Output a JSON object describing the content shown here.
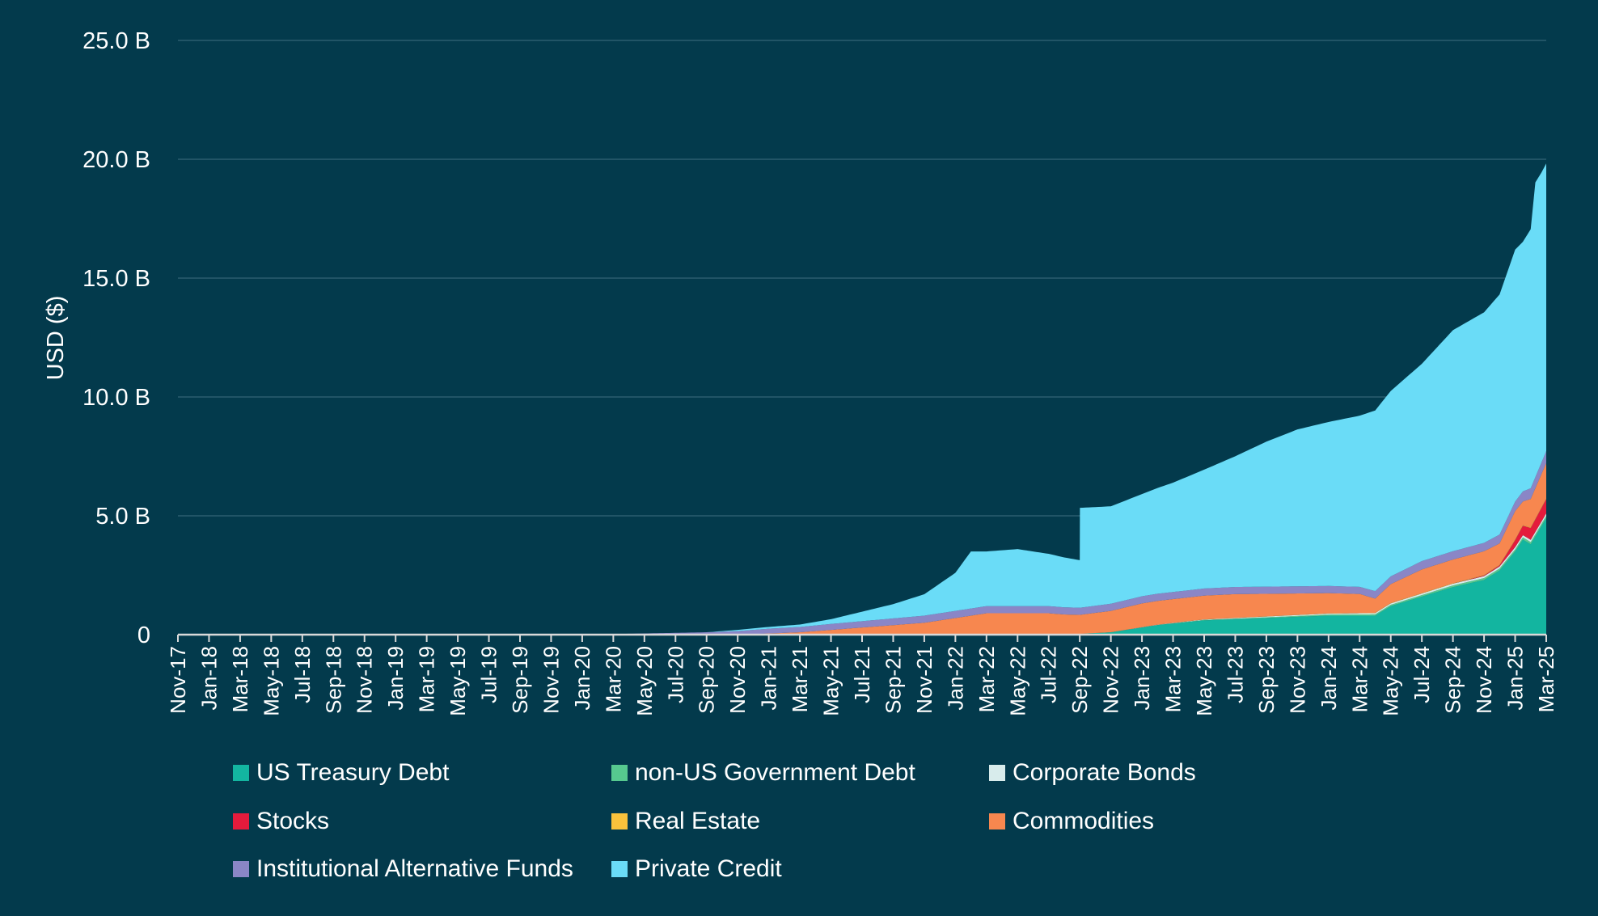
{
  "chart_data": {
    "type": "area",
    "title": "",
    "xlabel": "",
    "ylabel": "USD ($)",
    "ylim": [
      0,
      25
    ],
    "stacked": true,
    "grid": true,
    "legend_position": "bottom",
    "y_ticks": [
      {
        "value": 0,
        "label": "0"
      },
      {
        "value": 5,
        "label": "5.0 B"
      },
      {
        "value": 10,
        "label": "10.0 B"
      },
      {
        "value": 15,
        "label": "15.0 B"
      },
      {
        "value": 20,
        "label": "20.0 B"
      },
      {
        "value": 25,
        "label": "25.0 B"
      }
    ],
    "x_tick_labels": [
      "Nov-17",
      "Jan-18",
      "Mar-18",
      "May-18",
      "Jul-18",
      "Sep-18",
      "Nov-18",
      "Jan-19",
      "Mar-19",
      "May-19",
      "Jul-19",
      "Sep-19",
      "Nov-19",
      "Jan-20",
      "Mar-20",
      "May-20",
      "Jul-20",
      "Sep-20",
      "Nov-20",
      "Jan-21",
      "Mar-21",
      "May-21",
      "Jul-21",
      "Sep-21",
      "Nov-21",
      "Jan-22",
      "Mar-22",
      "May-22",
      "Jul-22",
      "Sep-22",
      "Nov-22",
      "Jan-23",
      "Mar-23",
      "May-23",
      "Jul-23",
      "Sep-23",
      "Nov-23",
      "Jan-24",
      "Mar-24",
      "May-24",
      "Jul-24",
      "Sep-24",
      "Nov-24",
      "Jan-25",
      "Mar-25"
    ],
    "x_month_range": [
      0,
      88
    ],
    "series": [
      {
        "name": "US Treasury Debt",
        "color": "#13b5a0",
        "points": [
          [
            0,
            0
          ],
          [
            57,
            0
          ],
          [
            60,
            0.1
          ],
          [
            63,
            0.4
          ],
          [
            66,
            0.6
          ],
          [
            70,
            0.7
          ],
          [
            74,
            0.8
          ],
          [
            76,
            0.8
          ],
          [
            77,
            0.8
          ],
          [
            78,
            1.2
          ],
          [
            80,
            1.6
          ],
          [
            82,
            2.0
          ],
          [
            84,
            2.3
          ],
          [
            85,
            2.7
          ],
          [
            86,
            3.5
          ],
          [
            86.5,
            4.0
          ],
          [
            87,
            3.8
          ],
          [
            88,
            4.9
          ]
        ]
      },
      {
        "name": "non-US Government Debt",
        "color": "#56c98f",
        "points": [
          [
            0,
            0
          ],
          [
            60,
            0
          ],
          [
            76,
            0.05
          ],
          [
            84,
            0.08
          ],
          [
            88,
            0.1
          ]
        ]
      },
      {
        "name": "Corporate Bonds",
        "color": "#d8ecec",
        "points": [
          [
            0,
            0
          ],
          [
            60,
            0
          ],
          [
            76,
            0.05
          ],
          [
            84,
            0.08
          ],
          [
            88,
            0.1
          ]
        ]
      },
      {
        "name": "Stocks",
        "color": "#e41b3c",
        "points": [
          [
            0,
            0
          ],
          [
            82,
            0
          ],
          [
            85,
            0.05
          ],
          [
            86,
            0.3
          ],
          [
            87,
            0.5
          ],
          [
            88,
            0.6
          ]
        ]
      },
      {
        "name": "Real Estate",
        "color": "#f9c23c",
        "points": [
          [
            0,
            0
          ],
          [
            60,
            0
          ],
          [
            88,
            0.02
          ]
        ]
      },
      {
        "name": "Commodities",
        "color": "#f7874f",
        "points": [
          [
            0,
            0
          ],
          [
            36,
            0
          ],
          [
            40,
            0.1
          ],
          [
            44,
            0.3
          ],
          [
            48,
            0.5
          ],
          [
            52,
            0.9
          ],
          [
            56,
            0.9
          ],
          [
            58,
            0.8
          ],
          [
            60,
            0.9
          ],
          [
            62,
            1.0
          ],
          [
            64,
            1.0
          ],
          [
            68,
            1.0
          ],
          [
            72,
            0.9
          ],
          [
            76,
            0.8
          ],
          [
            77,
            0.6
          ],
          [
            78,
            0.8
          ],
          [
            80,
            1.0
          ],
          [
            82,
            1.0
          ],
          [
            84,
            1.0
          ],
          [
            85,
            0.9
          ],
          [
            86,
            1.2
          ],
          [
            86.5,
            1.0
          ],
          [
            87,
            1.2
          ],
          [
            88,
            1.5
          ]
        ]
      },
      {
        "name": "Institutional Alternative Funds",
        "color": "#8a86c6",
        "points": [
          [
            0,
            0
          ],
          [
            26,
            0
          ],
          [
            30,
            0.05
          ],
          [
            34,
            0.1
          ],
          [
            38,
            0.2
          ],
          [
            42,
            0.25
          ],
          [
            48,
            0.3
          ],
          [
            54,
            0.3
          ],
          [
            60,
            0.3
          ],
          [
            66,
            0.3
          ],
          [
            72,
            0.3
          ],
          [
            76,
            0.3
          ],
          [
            80,
            0.35
          ],
          [
            84,
            0.35
          ],
          [
            86,
            0.4
          ],
          [
            88,
            0.5
          ]
        ]
      },
      {
        "name": "Private Credit",
        "color": "#6adcf7",
        "points": [
          [
            0,
            0
          ],
          [
            34,
            0
          ],
          [
            36,
            0.05
          ],
          [
            40,
            0.1
          ],
          [
            42,
            0.2
          ],
          [
            44,
            0.4
          ],
          [
            46,
            0.6
          ],
          [
            48,
            0.9
          ],
          [
            50,
            1.6
          ],
          [
            51,
            2.4
          ],
          [
            52,
            2.3
          ],
          [
            54,
            2.4
          ],
          [
            56,
            2.2
          ],
          [
            58,
            2.0
          ],
          [
            58.01,
            4.2
          ],
          [
            60,
            4.1
          ],
          [
            62,
            4.3
          ],
          [
            64,
            4.6
          ],
          [
            66,
            5.0
          ],
          [
            68,
            5.5
          ],
          [
            70,
            6.1
          ],
          [
            72,
            6.6
          ],
          [
            74,
            6.9
          ],
          [
            76,
            7.2
          ],
          [
            77,
            7.6
          ],
          [
            78,
            7.8
          ],
          [
            80,
            8.3
          ],
          [
            82,
            9.3
          ],
          [
            84,
            9.7
          ],
          [
            85,
            10.1
          ],
          [
            86,
            10.6
          ],
          [
            86.5,
            10.5
          ],
          [
            87,
            10.9
          ],
          [
            87.3,
            12.4
          ],
          [
            87.7,
            12.2
          ],
          [
            88,
            12.1
          ]
        ]
      }
    ]
  }
}
